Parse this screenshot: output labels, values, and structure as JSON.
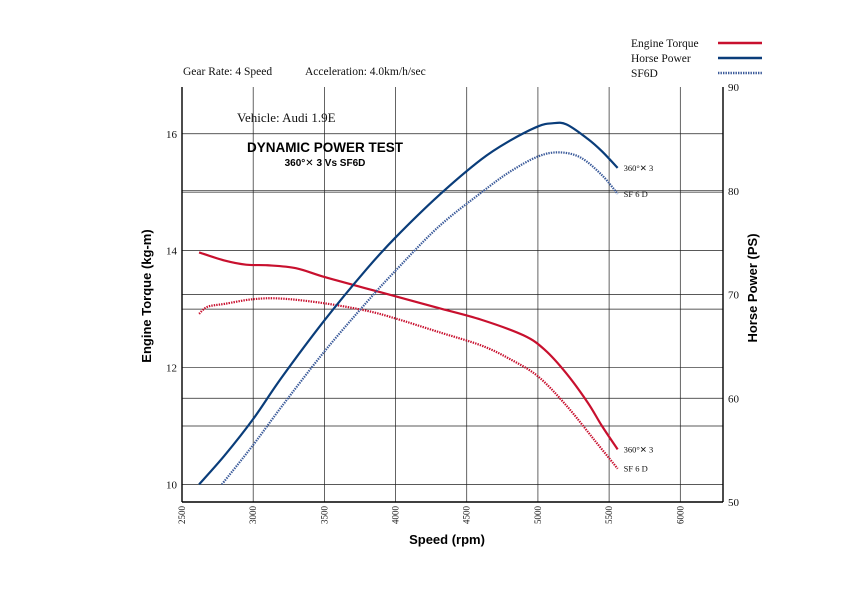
{
  "chart_data": {
    "type": "line",
    "header": {
      "gear_rate": "Gear Rate:  4 Speed",
      "acceleration": "Acceleration:  4.0km/h/sec"
    },
    "vehicle_note": "Vehicle: Audi 1.9E",
    "title": "DYNAMIC  POWER  TEST",
    "subtitle": "360°✕ 3    Vs    SF6D",
    "xlabel": "Speed (rpm)",
    "ylabel_left": "Engine Torque (kg-m)",
    "ylabel_right": "Horse Power (PS)",
    "xlim": [
      2500,
      6300
    ],
    "ylim_left": [
      9.7,
      16.8
    ],
    "ylim_right": [
      50,
      90
    ],
    "x_ticks": [
      2500,
      3000,
      3500,
      4000,
      4500,
      5000,
      5500,
      6000
    ],
    "y_left_ticks": [
      10,
      12,
      14,
      16
    ],
    "y_right_ticks": [
      50,
      60,
      70,
      80,
      90
    ],
    "grid": true,
    "legend_position": "top-right",
    "legend": [
      {
        "label": "Engine Torque",
        "color": "#c8102e",
        "style": "solid"
      },
      {
        "label": "Horse Power",
        "color": "#0a3d7a",
        "style": "solid"
      },
      {
        "label": "SF6D",
        "color": "#3a5a9a",
        "style": "dotted"
      }
    ],
    "series": [
      {
        "name": "Engine Torque",
        "variant": "360°✕ 3",
        "axis": "left",
        "color": "#c8102e",
        "style": "solid",
        "end_label": "360°✕ 3",
        "points": [
          [
            2620,
            13.97
          ],
          [
            2800,
            13.83
          ],
          [
            2950,
            13.76
          ],
          [
            3100,
            13.75
          ],
          [
            3300,
            13.7
          ],
          [
            3500,
            13.55
          ],
          [
            3800,
            13.35
          ],
          [
            4000,
            13.22
          ],
          [
            4300,
            13.02
          ],
          [
            4600,
            12.82
          ],
          [
            4900,
            12.55
          ],
          [
            5050,
            12.3
          ],
          [
            5200,
            11.9
          ],
          [
            5350,
            11.4
          ],
          [
            5450,
            11.0
          ],
          [
            5560,
            10.6
          ]
        ]
      },
      {
        "name": "Engine Torque",
        "variant": "SF6D",
        "axis": "left",
        "color": "#c8102e",
        "style": "dotted",
        "end_label": "SF 6 D",
        "points": [
          [
            2620,
            12.92
          ],
          [
            2680,
            13.04
          ],
          [
            2800,
            13.09
          ],
          [
            3000,
            13.17
          ],
          [
            3200,
            13.18
          ],
          [
            3500,
            13.1
          ],
          [
            3800,
            12.97
          ],
          [
            4000,
            12.84
          ],
          [
            4300,
            12.61
          ],
          [
            4600,
            12.38
          ],
          [
            4800,
            12.15
          ],
          [
            5000,
            11.85
          ],
          [
            5200,
            11.35
          ],
          [
            5400,
            10.75
          ],
          [
            5560,
            10.27
          ]
        ]
      },
      {
        "name": "Horse Power",
        "variant": "360°✕ 3",
        "axis": "right",
        "color": "#0a3d7a",
        "style": "solid",
        "end_label": "360°✕ 3",
        "points": [
          [
            2620,
            51.7
          ],
          [
            2800,
            54.5
          ],
          [
            3000,
            58.0
          ],
          [
            3200,
            62.0
          ],
          [
            3500,
            67.5
          ],
          [
            3800,
            72.5
          ],
          [
            4000,
            75.5
          ],
          [
            4300,
            79.5
          ],
          [
            4600,
            83.0
          ],
          [
            4800,
            84.8
          ],
          [
            5000,
            86.2
          ],
          [
            5100,
            86.5
          ],
          [
            5200,
            86.4
          ],
          [
            5350,
            85.0
          ],
          [
            5450,
            83.8
          ],
          [
            5560,
            82.2
          ]
        ]
      },
      {
        "name": "Horse Power",
        "variant": "SF6D",
        "axis": "right",
        "color": "#3a5a9a",
        "style": "dotted",
        "end_label": "SF 6 D",
        "points": [
          [
            2780,
            51.7
          ],
          [
            3000,
            55.5
          ],
          [
            3200,
            59.2
          ],
          [
            3500,
            64.5
          ],
          [
            3800,
            69.3
          ],
          [
            4000,
            72.3
          ],
          [
            4300,
            76.5
          ],
          [
            4600,
            79.8
          ],
          [
            4800,
            81.8
          ],
          [
            5000,
            83.3
          ],
          [
            5150,
            83.7
          ],
          [
            5300,
            83.2
          ],
          [
            5450,
            81.5
          ],
          [
            5560,
            79.7
          ]
        ]
      }
    ]
  }
}
